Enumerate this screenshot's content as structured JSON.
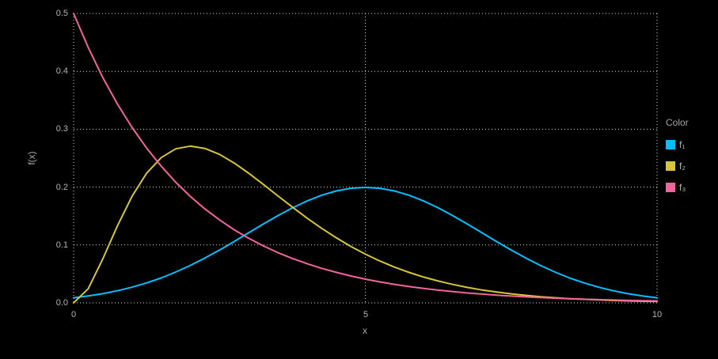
{
  "chart_data": {
    "type": "line",
    "title": "",
    "xlabel": "x",
    "ylabel": "f(x)",
    "xlim": [
      0,
      10
    ],
    "ylim": [
      0,
      0.5
    ],
    "grid": true,
    "background": "#000000",
    "x_ticks": {
      "values": [
        0,
        5,
        10
      ],
      "labels": [
        "0",
        "5",
        "10"
      ]
    },
    "y_ticks": {
      "values": [
        0,
        0.1,
        0.2,
        0.3,
        0.4,
        0.5
      ],
      "labels": [
        "0.0",
        "0.1",
        "0.2",
        "0.3",
        "0.4",
        "0.5"
      ]
    },
    "legend": {
      "title": "Color",
      "position": "right"
    },
    "x": [
      0,
      0.25,
      0.5,
      0.75,
      1,
      1.25,
      1.5,
      1.75,
      2,
      2.25,
      2.5,
      2.75,
      3,
      3.25,
      3.5,
      3.75,
      4,
      4.25,
      4.5,
      4.75,
      5,
      5.25,
      5.5,
      5.75,
      6,
      6.25,
      6.5,
      6.75,
      7,
      7.25,
      7.5,
      7.75,
      8,
      8.25,
      8.5,
      8.75,
      9,
      9.25,
      9.5,
      9.75,
      10
    ],
    "series": [
      {
        "name": "f₁",
        "color": "#00BFFF",
        "values": [
          0.0088,
          0.0119,
          0.0159,
          0.0209,
          0.027,
          0.0344,
          0.0431,
          0.0533,
          0.0648,
          0.0775,
          0.0913,
          0.1059,
          0.121,
          0.136,
          0.1506,
          0.1641,
          0.176,
          0.1859,
          0.1933,
          0.1979,
          0.1995,
          0.1979,
          0.1933,
          0.1859,
          0.176,
          0.1641,
          0.1506,
          0.136,
          0.121,
          0.1059,
          0.0913,
          0.0775,
          0.0648,
          0.0533,
          0.0431,
          0.0344,
          0.027,
          0.0209,
          0.0159,
          0.0119,
          0.0088
        ]
      },
      {
        "name": "f₂",
        "color": "#D4C53C",
        "values": [
          0,
          0.0243,
          0.0758,
          0.1329,
          0.1839,
          0.2238,
          0.251,
          0.2661,
          0.2707,
          0.2668,
          0.2565,
          0.2417,
          0.224,
          0.2048,
          0.185,
          0.1654,
          0.1465,
          0.1288,
          0.1125,
          0.0976,
          0.0842,
          0.0723,
          0.0618,
          0.0526,
          0.0446,
          0.0377,
          0.0318,
          0.0267,
          0.0223,
          0.0187,
          0.0156,
          0.013,
          0.0107,
          0.0089,
          0.0073,
          0.0061,
          0.005,
          0.0041,
          0.0034,
          0.0028,
          0.0023
        ]
      },
      {
        "name": "f₃",
        "color": "#F2659C",
        "values": [
          0.5,
          0.4412,
          0.3894,
          0.3436,
          0.3033,
          0.2676,
          0.2362,
          0.2084,
          0.1839,
          0.1623,
          0.1433,
          0.1264,
          0.1116,
          0.0985,
          0.0869,
          0.0767,
          0.0677,
          0.0597,
          0.0527,
          0.0465,
          0.041,
          0.0362,
          0.032,
          0.0282,
          0.0249,
          0.022,
          0.0194,
          0.0171,
          0.0151,
          0.0133,
          0.0118,
          0.0104,
          0.0092,
          0.0081,
          0.0071,
          0.0063,
          0.0056,
          0.0049,
          0.0043,
          0.0038,
          0.0034
        ]
      }
    ]
  }
}
